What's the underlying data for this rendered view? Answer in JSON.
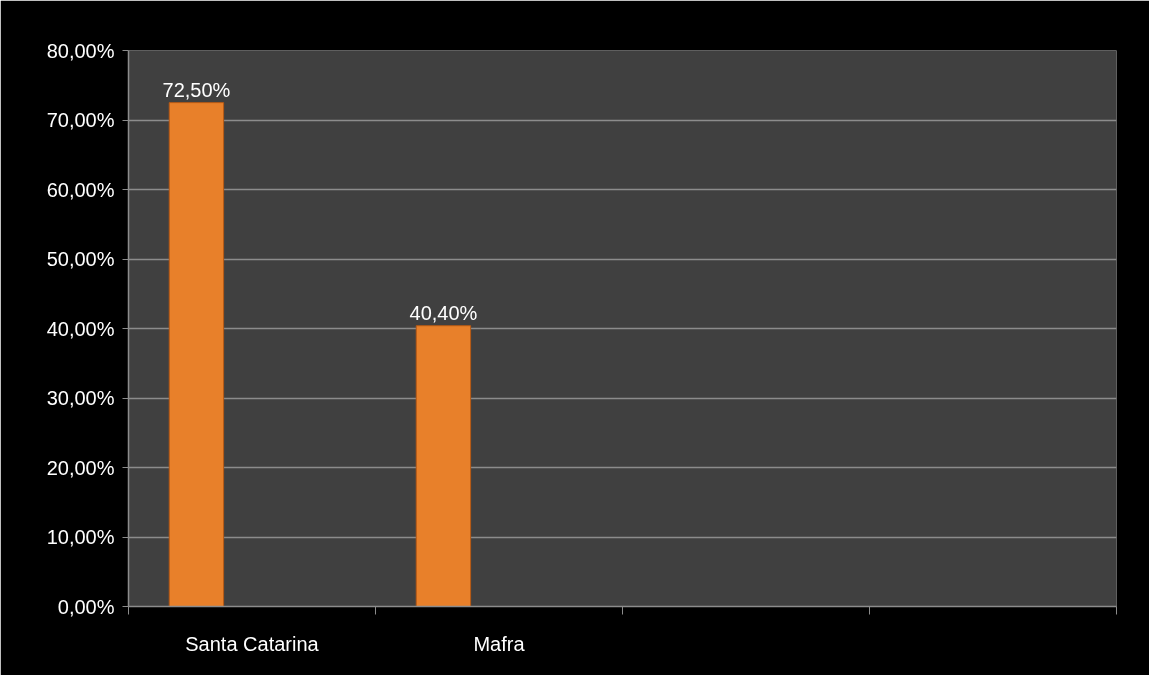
{
  "chart_data": {
    "type": "bar",
    "categories": [
      "Santa Catarina",
      "Mafra",
      null,
      null
    ],
    "values": [
      72.5,
      40.4,
      null,
      null
    ],
    "color": "#e8802a",
    "value_labels": [
      "72,50%",
      "40,40%",
      null,
      null
    ],
    "ylim": [
      0,
      80
    ],
    "yticks": [
      {
        "value": 0,
        "label": "0,00%"
      },
      {
        "value": 10,
        "label": "10,00%"
      },
      {
        "value": 20,
        "label": "20,00%"
      },
      {
        "value": 30,
        "label": "30,00%"
      },
      {
        "value": 40,
        "label": "40,00%"
      },
      {
        "value": 50,
        "label": "50,00%"
      },
      {
        "value": 60,
        "label": "60,00%"
      },
      {
        "value": 70,
        "label": "70,00%"
      },
      {
        "value": 80,
        "label": "80,00%"
      }
    ],
    "grid": "y"
  }
}
